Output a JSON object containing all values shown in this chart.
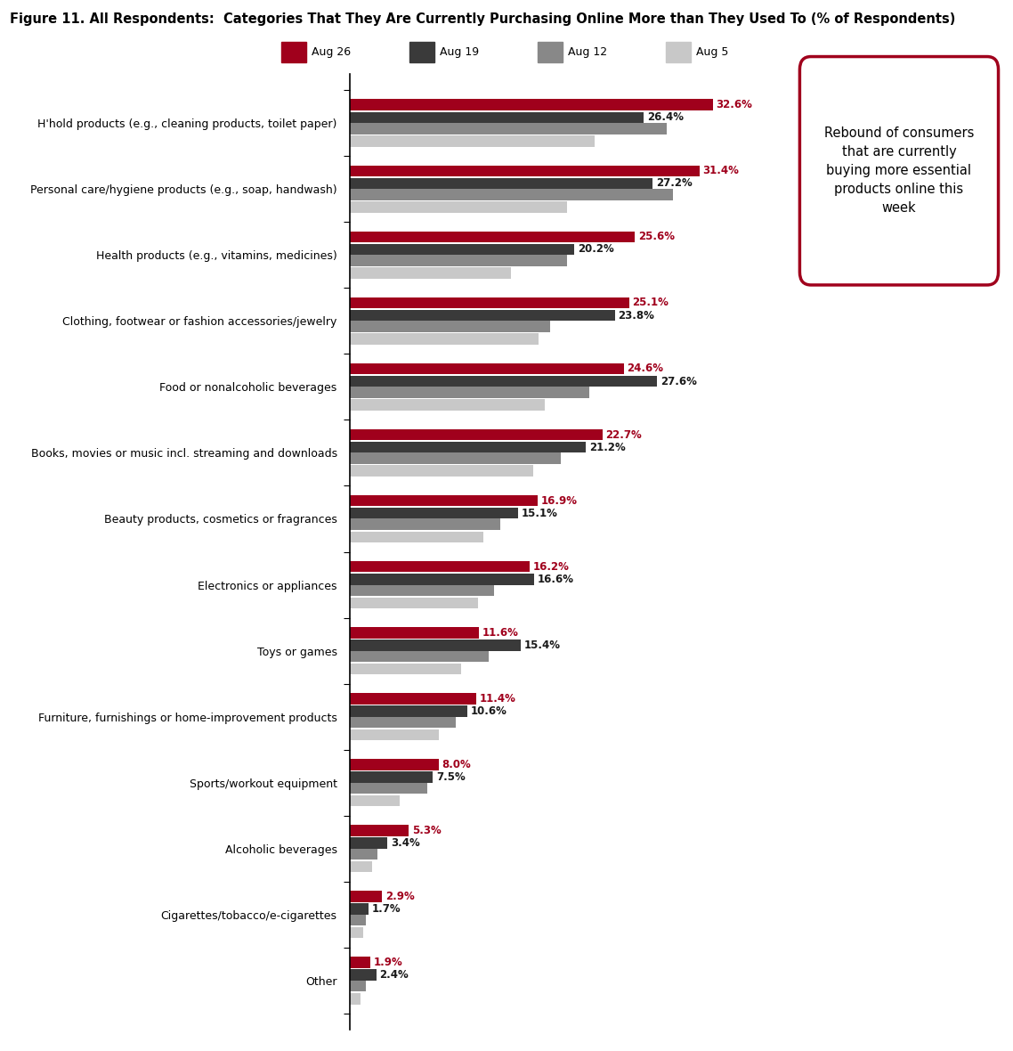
{
  "title": "Figure 11. All Respondents:  Categories That They Are Currently Purchasing Online More than They Used To (% of Respondents)",
  "categories": [
    "H'hold products (e.g., cleaning products, toilet paper)",
    "Personal care/hygiene products (e.g., soap, handwash)",
    "Health products (e.g., vitamins, medicines)",
    "Clothing, footwear or fashion accessories/jewelry",
    "Food or nonalcoholic beverages",
    "Books, movies or music incl. streaming and downloads",
    "Beauty products, cosmetics or fragrances",
    "Electronics or appliances",
    "Toys or games",
    "Furniture, furnishings or home-improvement products",
    "Sports/workout equipment",
    "Alcoholic beverages",
    "Cigarettes/tobacco/e-cigarettes",
    "Other"
  ],
  "aug26": [
    32.6,
    31.4,
    25.6,
    25.1,
    24.6,
    22.7,
    16.9,
    16.2,
    11.6,
    11.4,
    8.0,
    5.3,
    2.9,
    1.9
  ],
  "aug19": [
    26.4,
    27.2,
    20.2,
    23.8,
    27.6,
    21.2,
    15.1,
    16.6,
    15.4,
    10.6,
    7.5,
    3.4,
    1.7,
    2.4
  ],
  "aug12": [
    28.5,
    29.0,
    19.5,
    18.0,
    21.5,
    19.0,
    13.5,
    13.0,
    12.5,
    9.5,
    7.0,
    2.5,
    1.5,
    1.5
  ],
  "aug5": [
    22.0,
    19.5,
    14.5,
    17.0,
    17.5,
    16.5,
    12.0,
    11.5,
    10.0,
    8.0,
    4.5,
    2.0,
    1.2,
    1.0
  ],
  "color_aug26": "#A0001C",
  "color_aug19": "#3A3A3A",
  "color_aug12": "#888888",
  "color_aug5": "#C8C8C8",
  "annotation_text": "Rebound of consumers\nthat are currently\nbuying more essential\nproducts online this\nweek",
  "figsize": [
    11.38,
    11.8
  ]
}
